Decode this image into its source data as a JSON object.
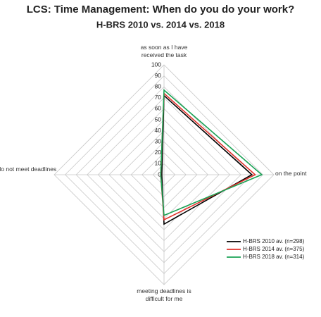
{
  "chart_data": {
    "type": "radar",
    "title": "LCS: Time Management: When do you do your work?",
    "subtitle": "H-BRS 2010 vs. 2014 vs. 2018",
    "categories": [
      "as soon as I have received the task",
      "on the point",
      "meeting deadlines is difficult for me",
      "I do not meet deadlines"
    ],
    "ylim": [
      0,
      100
    ],
    "yticks": [
      0,
      10,
      20,
      30,
      40,
      50,
      60,
      70,
      80,
      90,
      100
    ],
    "grid": true,
    "legend": "lower right",
    "series": [
      {
        "name": "H-BRS 2010 av. (n=298)",
        "color": "#000000",
        "values": [
          72,
          80,
          45,
          2
        ]
      },
      {
        "name": "H-BRS 2014 av. (n=375)",
        "color": "#e0302a",
        "values": [
          74,
          83,
          41,
          3
        ]
      },
      {
        "name": "H-BRS 2018 av. (n=314)",
        "color": "#1aa255",
        "values": [
          77,
          89,
          37,
          3
        ]
      }
    ]
  }
}
